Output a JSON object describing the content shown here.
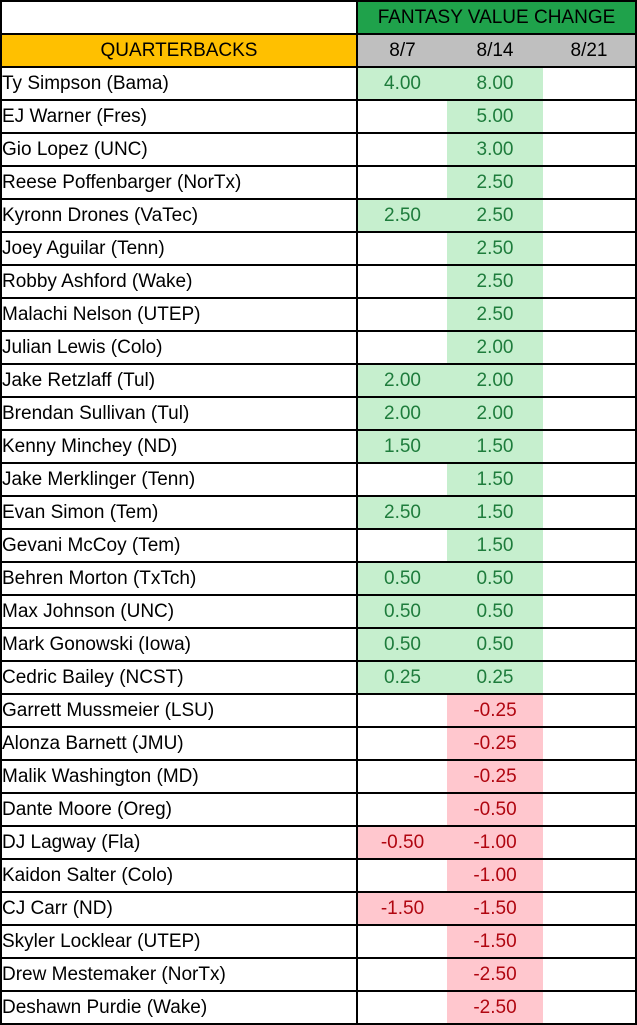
{
  "table": {
    "banner_title": "FANTASY VALUE CHANGE",
    "position_header": "QUARTERBACKS",
    "date_columns": [
      "8/7",
      "8/14",
      "8/21"
    ],
    "colors": {
      "banner_bg": "#1FA24B",
      "header_gray_bg": "#BFBFBF",
      "header_orange_bg": "#FFC000",
      "positive_fill": "#C6EFCE",
      "positive_text": "#1E7C3C",
      "negative_fill": "#FFC7CE",
      "negative_text": "#B00610",
      "grid_border": "#000000"
    },
    "players": [
      {
        "name": "Ty Simpson (Bama)",
        "values": [
          "4.00",
          "8.00",
          ""
        ]
      },
      {
        "name": "EJ Warner (Fres)",
        "values": [
          "",
          "5.00",
          ""
        ]
      },
      {
        "name": "Gio Lopez (UNC)",
        "values": [
          "",
          "3.00",
          ""
        ]
      },
      {
        "name": "Reese Poffenbarger (NorTx)",
        "values": [
          "",
          "2.50",
          ""
        ]
      },
      {
        "name": "Kyronn Drones (VaTec)",
        "values": [
          "2.50",
          "2.50",
          ""
        ]
      },
      {
        "name": "Joey Aguilar (Tenn)",
        "values": [
          "",
          "2.50",
          ""
        ]
      },
      {
        "name": "Robby Ashford (Wake)",
        "values": [
          "",
          "2.50",
          ""
        ]
      },
      {
        "name": "Malachi Nelson (UTEP)",
        "values": [
          "",
          "2.50",
          ""
        ]
      },
      {
        "name": "Julian Lewis (Colo)",
        "values": [
          "",
          "2.00",
          ""
        ]
      },
      {
        "name": "Jake Retzlaff (Tul)",
        "values": [
          "2.00",
          "2.00",
          ""
        ]
      },
      {
        "name": "Brendan Sullivan (Tul)",
        "values": [
          "2.00",
          "2.00",
          ""
        ]
      },
      {
        "name": "Kenny Minchey (ND)",
        "values": [
          "1.50",
          "1.50",
          ""
        ]
      },
      {
        "name": "Jake Merklinger (Tenn)",
        "values": [
          "",
          "1.50",
          ""
        ]
      },
      {
        "name": "Evan Simon (Tem)",
        "values": [
          "2.50",
          "1.50",
          ""
        ]
      },
      {
        "name": "Gevani McCoy (Tem)",
        "values": [
          "",
          "1.50",
          ""
        ]
      },
      {
        "name": "Behren Morton (TxTch)",
        "values": [
          "0.50",
          "0.50",
          ""
        ]
      },
      {
        "name": "Max Johnson (UNC)",
        "values": [
          "0.50",
          "0.50",
          ""
        ]
      },
      {
        "name": "Mark Gonowski (Iowa)",
        "values": [
          "0.50",
          "0.50",
          ""
        ]
      },
      {
        "name": "Cedric Bailey (NCST)",
        "values": [
          "0.25",
          "0.25",
          ""
        ]
      },
      {
        "name": "Garrett Mussmeier (LSU)",
        "values": [
          "",
          "-0.25",
          ""
        ]
      },
      {
        "name": "Alonza Barnett (JMU)",
        "values": [
          "",
          "-0.25",
          ""
        ]
      },
      {
        "name": "Malik Washington (MD)",
        "values": [
          "",
          "-0.25",
          ""
        ]
      },
      {
        "name": "Dante Moore (Oreg)",
        "values": [
          "",
          "-0.50",
          ""
        ]
      },
      {
        "name": "DJ Lagway (Fla)",
        "values": [
          "-0.50",
          "-1.00",
          ""
        ]
      },
      {
        "name": "Kaidon Salter (Colo)",
        "values": [
          "",
          "-1.00",
          ""
        ]
      },
      {
        "name": "CJ Carr (ND)",
        "values": [
          "-1.50",
          "-1.50",
          ""
        ]
      },
      {
        "name": "Skyler Locklear (UTEP)",
        "values": [
          "",
          "-1.50",
          ""
        ]
      },
      {
        "name": "Drew Mestemaker (NorTx)",
        "values": [
          "",
          "-2.50",
          ""
        ]
      },
      {
        "name": "Deshawn Purdie (Wake)",
        "values": [
          "",
          "-2.50",
          ""
        ]
      }
    ]
  }
}
